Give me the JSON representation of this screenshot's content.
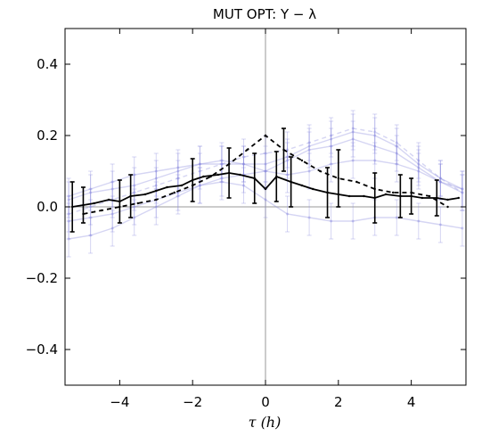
{
  "chart_data": {
    "type": "line",
    "title": "MUT OPT: Y − λ",
    "xlabel": "τ (h)",
    "ylabel": "",
    "xlim": [
      -5.5,
      5.5
    ],
    "ylim": [
      -0.5,
      0.5
    ],
    "xticks": [
      -4,
      -2,
      0,
      2,
      4
    ],
    "xtick_labels": [
      "−4",
      "−2",
      "0",
      "2",
      "4"
    ],
    "yticks": [
      -0.4,
      -0.2,
      0.0,
      0.2,
      0.4
    ],
    "ytick_labels": [
      "−0.4",
      "−0.2",
      "0.0",
      "0.2",
      "0.4"
    ],
    "grid": false,
    "reference_lines": {
      "x": 0,
      "y": 0
    },
    "colors": {
      "main": "#000000",
      "background_series": "#8888dd",
      "reference": "#999999",
      "frame": "#000000"
    },
    "series": [
      {
        "style": "solid",
        "color": "#000000",
        "error_bars": true,
        "x": [
          -5.3,
          -5.0,
          -4.7,
          -4.3,
          -4.0,
          -3.7,
          -3.3,
          -3.0,
          -2.7,
          -2.3,
          -2.0,
          -1.7,
          -1.3,
          -1.0,
          -0.7,
          -0.3,
          0.0,
          0.3,
          0.7,
          1.0,
          1.3,
          1.7,
          2.0,
          2.3,
          2.7,
          3.0,
          3.3,
          3.7,
          4.0,
          4.3,
          4.7,
          5.0,
          5.3
        ],
        "y": [
          0.0,
          0.005,
          0.01,
          0.02,
          0.015,
          0.03,
          0.035,
          0.045,
          0.055,
          0.06,
          0.075,
          0.085,
          0.09,
          0.095,
          0.09,
          0.08,
          0.05,
          0.085,
          0.07,
          0.06,
          0.05,
          0.04,
          0.035,
          0.03,
          0.03,
          0.025,
          0.035,
          0.03,
          0.03,
          0.025,
          0.025,
          0.02,
          0.025
        ],
        "err": [
          0.07,
          0.05,
          0.0,
          0.0,
          0.06,
          0.06,
          0.0,
          0.0,
          0.0,
          0.0,
          0.06,
          0.0,
          0.0,
          0.07,
          0.0,
          0.07,
          0.0,
          0.07,
          0.07,
          0.0,
          0.0,
          0.07,
          0.0,
          0.0,
          0.0,
          0.07,
          0.0,
          0.06,
          0.05,
          0.0,
          0.05,
          0.0,
          0.0
        ]
      },
      {
        "style": "dashed",
        "color": "#000000",
        "error_bars": true,
        "x": [
          -5.0,
          -4.5,
          -4.0,
          -3.5,
          -3.0,
          -2.5,
          -2.0,
          -1.5,
          -1.0,
          -0.5,
          0.0,
          0.5,
          1.0,
          1.5,
          2.0,
          2.5,
          3.0,
          3.5,
          4.0,
          4.5,
          5.0
        ],
        "y": [
          -0.02,
          -0.01,
          0.0,
          0.01,
          0.02,
          0.04,
          0.06,
          0.085,
          0.12,
          0.16,
          0.2,
          0.16,
          0.13,
          0.1,
          0.08,
          0.07,
          0.05,
          0.04,
          0.04,
          0.03,
          0.0
        ],
        "err": [
          0.0,
          0.0,
          0.0,
          0.0,
          0.0,
          0.0,
          0.0,
          0.0,
          0.0,
          0.0,
          0.0,
          0.06,
          0.0,
          0.0,
          0.08,
          0.0,
          0.0,
          0.0,
          0.0,
          0.0,
          0.0
        ]
      },
      {
        "style": "faint",
        "color": "#8888dd",
        "error_bars": true,
        "x": [
          -5.4,
          -4.8,
          -4.2,
          -3.6,
          -3.0,
          -2.4,
          -1.8,
          -1.2,
          -0.6,
          0.0,
          0.6,
          1.2,
          1.8,
          2.4,
          3.0,
          3.6,
          4.2,
          4.8,
          5.4
        ],
        "y": [
          -0.09,
          -0.08,
          -0.06,
          -0.03,
          0.0,
          0.03,
          0.06,
          0.08,
          0.09,
          0.1,
          0.13,
          0.16,
          0.17,
          0.19,
          0.17,
          0.15,
          0.11,
          0.07,
          0.04
        ],
        "err": [
          0.05,
          0.05,
          0.05,
          0.05,
          0.05,
          0.05,
          0.05,
          0.05,
          0.05,
          0.05,
          0.05,
          0.05,
          0.05,
          0.05,
          0.05,
          0.05,
          0.05,
          0.05,
          0.05
        ]
      },
      {
        "style": "faint",
        "color": "#8888dd",
        "error_bars": true,
        "x": [
          -5.4,
          -4.8,
          -4.2,
          -3.6,
          -3.0,
          -2.4,
          -1.8,
          -1.2,
          -0.6,
          0.0,
          0.6,
          1.2,
          1.8,
          2.4,
          3.0,
          3.6,
          4.2,
          4.8,
          5.4
        ],
        "y": [
          0.03,
          0.05,
          0.07,
          0.09,
          0.1,
          0.11,
          0.12,
          0.12,
          0.12,
          0.12,
          0.14,
          0.17,
          0.19,
          0.21,
          0.2,
          0.17,
          0.12,
          0.08,
          0.05
        ],
        "err": [
          0.05,
          0.05,
          0.05,
          0.05,
          0.05,
          0.05,
          0.05,
          0.05,
          0.05,
          0.05,
          0.05,
          0.05,
          0.05,
          0.05,
          0.05,
          0.05,
          0.05,
          0.05,
          0.05
        ]
      },
      {
        "style": "faint",
        "color": "#8888dd",
        "error_bars": true,
        "x": [
          -5.4,
          -4.8,
          -4.2,
          -3.6,
          -3.0,
          -2.4,
          -1.8,
          -1.2,
          -0.6,
          0.0,
          0.6,
          1.2,
          1.8,
          2.4,
          3.0,
          3.6,
          4.2,
          4.8,
          5.4
        ],
        "y": [
          -0.04,
          -0.03,
          -0.02,
          0.0,
          0.02,
          0.04,
          0.06,
          0.07,
          0.06,
          0.02,
          -0.02,
          -0.03,
          -0.04,
          -0.04,
          -0.03,
          -0.03,
          -0.04,
          -0.05,
          -0.06
        ],
        "err": [
          0.05,
          0.05,
          0.05,
          0.05,
          0.05,
          0.05,
          0.05,
          0.05,
          0.05,
          0.05,
          0.05,
          0.05,
          0.05,
          0.05,
          0.05,
          0.05,
          0.05,
          0.05,
          0.05
        ]
      },
      {
        "style": "faint-dashed",
        "color": "#8888dd",
        "error_bars": true,
        "x": [
          -5.4,
          -4.8,
          -4.2,
          -3.6,
          -3.0,
          -2.4,
          -1.8,
          -1.2,
          -0.6,
          0.0,
          0.6,
          1.2,
          1.8,
          2.4,
          3.0,
          3.6,
          4.2,
          4.8,
          5.4
        ],
        "y": [
          -0.02,
          0.0,
          0.02,
          0.04,
          0.06,
          0.08,
          0.1,
          0.12,
          0.14,
          0.15,
          0.16,
          0.18,
          0.2,
          0.22,
          0.21,
          0.18,
          0.13,
          0.08,
          0.04
        ],
        "err": [
          0.05,
          0.05,
          0.05,
          0.05,
          0.05,
          0.05,
          0.05,
          0.05,
          0.05,
          0.05,
          0.05,
          0.05,
          0.05,
          0.05,
          0.05,
          0.05,
          0.05,
          0.05,
          0.05
        ]
      },
      {
        "style": "faint",
        "color": "#8888dd",
        "error_bars": true,
        "x": [
          -5.4,
          -4.8,
          -4.2,
          -3.6,
          -3.0,
          -2.4,
          -1.8,
          -1.2,
          -0.6,
          0.0,
          0.6,
          1.2,
          1.8,
          2.4,
          3.0,
          3.6,
          4.2,
          4.8,
          5.4
        ],
        "y": [
          0.02,
          0.04,
          0.05,
          0.06,
          0.08,
          0.1,
          0.12,
          0.13,
          0.12,
          0.1,
          0.09,
          0.1,
          0.12,
          0.13,
          0.13,
          0.12,
          0.1,
          0.07,
          0.05
        ],
        "err": [
          0.05,
          0.05,
          0.05,
          0.05,
          0.05,
          0.05,
          0.05,
          0.05,
          0.05,
          0.05,
          0.05,
          0.05,
          0.05,
          0.05,
          0.05,
          0.05,
          0.05,
          0.05,
          0.05
        ]
      }
    ]
  }
}
